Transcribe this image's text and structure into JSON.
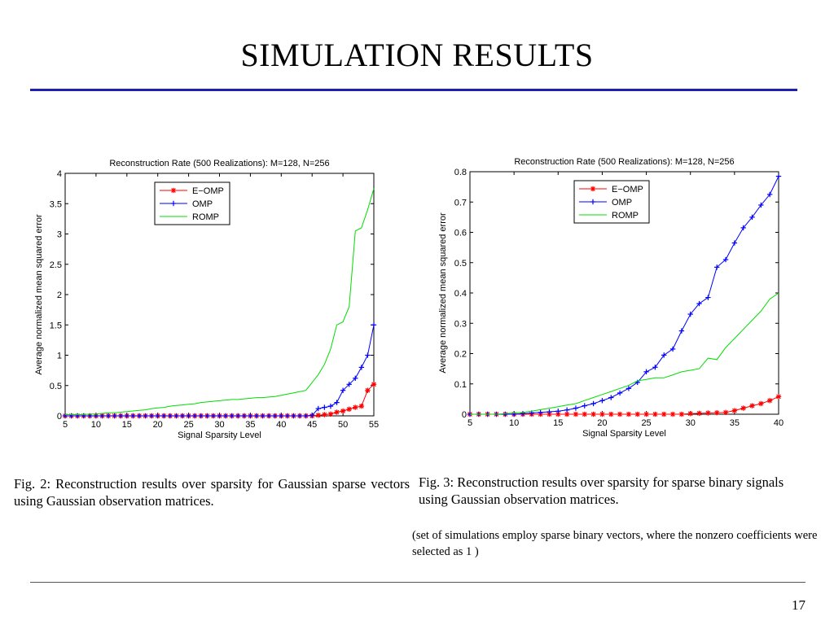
{
  "slide": {
    "title": "SIMULATION RESULTS",
    "captions": [
      "Fig. 2: Reconstruction results over sparsity for Gaussian sparse vectors using Gaussian observation matrices.",
      "Fig. 3: Reconstruction results over sparsity for sparse binary signals using Gaussian observation matrices."
    ],
    "note": "(set of simulations employ sparse binary vectors, where the nonzero coefficients were selected as 1 )",
    "page_number": "17"
  },
  "colors": {
    "rule": "#1f1fb4",
    "e_omp": "#ff0000",
    "omp": "#0000ff",
    "romp": "#00dd00"
  },
  "chart_data": [
    {
      "type": "line",
      "title": "Reconstruction Rate (500 Realizations): M=128, N=256",
      "xlabel": "Signal Sparsity Level",
      "ylabel": "Average normalized mean squared error",
      "xlim": [
        5,
        55
      ],
      "ylim": [
        0,
        4
      ],
      "xticks": [
        5,
        10,
        15,
        20,
        25,
        30,
        35,
        40,
        45,
        50,
        55
      ],
      "yticks": [
        0,
        0.5,
        1,
        1.5,
        2,
        2.5,
        3,
        3.5,
        4
      ],
      "ytick_labels": [
        "0",
        "0.5",
        "1",
        "1.5",
        "2",
        "2.5",
        "3",
        "3.5",
        "4"
      ],
      "legend_position": "top-left",
      "x": [
        5,
        6,
        7,
        8,
        9,
        10,
        11,
        12,
        13,
        14,
        15,
        16,
        17,
        18,
        19,
        20,
        21,
        22,
        23,
        24,
        25,
        26,
        27,
        28,
        29,
        30,
        31,
        32,
        33,
        34,
        35,
        36,
        37,
        38,
        39,
        40,
        41,
        42,
        43,
        44,
        45,
        46,
        47,
        48,
        49,
        50,
        51,
        52,
        53,
        54,
        55
      ],
      "series": [
        {
          "name": "E−OMP",
          "color": "#ff0000",
          "marker": "*",
          "values": [
            0,
            0,
            0,
            0,
            0,
            0,
            0,
            0,
            0,
            0,
            0,
            0,
            0,
            0,
            0,
            0,
            0,
            0,
            0,
            0,
            0,
            0,
            0,
            0,
            0,
            0,
            0,
            0,
            0,
            0,
            0,
            0,
            0,
            0,
            0,
            0,
            0,
            0,
            0,
            0,
            0,
            0.01,
            0.02,
            0.03,
            0.06,
            0.08,
            0.11,
            0.14,
            0.16,
            0.42,
            0.52
          ]
        },
        {
          "name": "OMP",
          "color": "#0000ff",
          "marker": "+",
          "values": [
            0,
            0,
            0,
            0,
            0,
            0,
            0,
            0,
            0,
            0,
            0,
            0,
            0,
            0,
            0,
            0,
            0,
            0,
            0,
            0,
            0,
            0,
            0,
            0,
            0,
            0,
            0,
            0,
            0,
            0,
            0,
            0,
            0,
            0,
            0,
            0,
            0,
            0,
            0,
            0,
            0.01,
            0.12,
            0.14,
            0.16,
            0.22,
            0.42,
            0.52,
            0.62,
            0.8,
            1.0,
            1.5
          ]
        },
        {
          "name": "ROMP",
          "color": "#00dd00",
          "marker": "",
          "values": [
            0.02,
            0.02,
            0.02,
            0.02,
            0.03,
            0.03,
            0.04,
            0.05,
            0.05,
            0.06,
            0.07,
            0.08,
            0.09,
            0.1,
            0.12,
            0.13,
            0.14,
            0.16,
            0.17,
            0.18,
            0.19,
            0.2,
            0.22,
            0.23,
            0.24,
            0.25,
            0.26,
            0.27,
            0.27,
            0.28,
            0.29,
            0.3,
            0.3,
            0.31,
            0.32,
            0.34,
            0.36,
            0.38,
            0.4,
            0.42,
            0.55,
            0.68,
            0.85,
            1.1,
            1.5,
            1.55,
            1.8,
            3.05,
            3.1,
            3.4,
            3.75
          ]
        }
      ]
    },
    {
      "type": "line",
      "title": "Reconstruction Rate (500 Realizations): M=128, N=256",
      "xlabel": "Signal Sparsity Level",
      "ylabel": "Average normalized mean squared error",
      "xlim": [
        5,
        40
      ],
      "ylim": [
        0,
        0.8
      ],
      "xticks": [
        5,
        10,
        15,
        20,
        25,
        30,
        35,
        40
      ],
      "yticks": [
        0,
        0.1,
        0.2,
        0.3,
        0.4,
        0.5,
        0.6,
        0.7,
        0.8
      ],
      "ytick_labels": [
        "0",
        "0.1",
        "0.2",
        "0.3",
        "0.4",
        "0.5",
        "0.6",
        "0.7",
        "0.8"
      ],
      "legend_position": "top-left",
      "x": [
        5,
        6,
        7,
        8,
        9,
        10,
        11,
        12,
        13,
        14,
        15,
        16,
        17,
        18,
        19,
        20,
        21,
        22,
        23,
        24,
        25,
        26,
        27,
        28,
        29,
        30,
        31,
        32,
        33,
        34,
        35,
        36,
        37,
        38,
        39,
        40
      ],
      "series": [
        {
          "name": "E−OMP",
          "color": "#ff0000",
          "marker": "*",
          "values": [
            0,
            0,
            0,
            0,
            0,
            0,
            0,
            0,
            0,
            0,
            0,
            0,
            0,
            0,
            0,
            0,
            0,
            0,
            0,
            0,
            0,
            0,
            0,
            0,
            0,
            0.002,
            0.003,
            0.004,
            0.005,
            0.006,
            0.012,
            0.02,
            0.028,
            0.035,
            0.045,
            0.058
          ]
        },
        {
          "name": "OMP",
          "color": "#0000ff",
          "marker": "+",
          "values": [
            0,
            0,
            0,
            0,
            0,
            0,
            0.002,
            0.004,
            0.006,
            0.008,
            0.01,
            0.014,
            0.02,
            0.028,
            0.035,
            0.045,
            0.055,
            0.07,
            0.085,
            0.105,
            0.14,
            0.155,
            0.195,
            0.215,
            0.275,
            0.33,
            0.365,
            0.385,
            0.485,
            0.51,
            0.565,
            0.615,
            0.65,
            0.69,
            0.725,
            0.785
          ]
        },
        {
          "name": "ROMP",
          "color": "#00dd00",
          "marker": "",
          "values": [
            0,
            0,
            0,
            0,
            0.002,
            0.004,
            0.006,
            0.01,
            0.015,
            0.02,
            0.025,
            0.03,
            0.035,
            0.045,
            0.055,
            0.065,
            0.075,
            0.085,
            0.095,
            0.11,
            0.115,
            0.12,
            0.12,
            0.13,
            0.14,
            0.145,
            0.15,
            0.185,
            0.18,
            0.22,
            0.25,
            0.28,
            0.31,
            0.34,
            0.38,
            0.4
          ]
        }
      ]
    }
  ]
}
